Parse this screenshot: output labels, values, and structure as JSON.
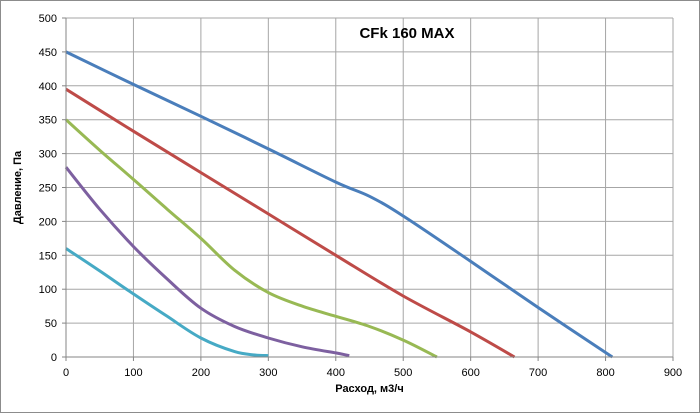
{
  "chart_data": {
    "type": "line",
    "title": "CFk 160 MAX",
    "xlabel": "Расход, м3/ч",
    "ylabel": "Давление, Па",
    "xlim": [
      0,
      900
    ],
    "ylim": [
      0,
      500
    ],
    "x_ticks": [
      0,
      100,
      200,
      300,
      400,
      500,
      600,
      700,
      800,
      900
    ],
    "y_ticks": [
      0,
      50,
      100,
      150,
      200,
      250,
      300,
      350,
      400,
      450,
      500
    ],
    "grid": true,
    "legend": "none",
    "series": [
      {
        "name": "blue",
        "color": "#4a7ebb",
        "points": [
          [
            0,
            450
          ],
          [
            100,
            402
          ],
          [
            200,
            355
          ],
          [
            300,
            307
          ],
          [
            400,
            258
          ],
          [
            450,
            237
          ],
          [
            500,
            208
          ],
          [
            600,
            141
          ],
          [
            700,
            73
          ],
          [
            810,
            0
          ]
        ]
      },
      {
        "name": "red",
        "color": "#be4b48",
        "points": [
          [
            0,
            395
          ],
          [
            100,
            333
          ],
          [
            200,
            272
          ],
          [
            300,
            211
          ],
          [
            400,
            150
          ],
          [
            500,
            90
          ],
          [
            600,
            37
          ],
          [
            665,
            0
          ]
        ]
      },
      {
        "name": "green",
        "color": "#98b954",
        "points": [
          [
            0,
            350
          ],
          [
            50,
            305
          ],
          [
            100,
            262
          ],
          [
            150,
            218
          ],
          [
            200,
            175
          ],
          [
            250,
            128
          ],
          [
            300,
            95
          ],
          [
            350,
            75
          ],
          [
            400,
            60
          ],
          [
            450,
            45
          ],
          [
            500,
            25
          ],
          [
            550,
            0
          ]
        ]
      },
      {
        "name": "purple",
        "color": "#7d60a0",
        "points": [
          [
            0,
            280
          ],
          [
            50,
            218
          ],
          [
            100,
            163
          ],
          [
            150,
            115
          ],
          [
            200,
            72
          ],
          [
            250,
            45
          ],
          [
            300,
            28
          ],
          [
            350,
            15
          ],
          [
            400,
            6
          ],
          [
            420,
            2
          ]
        ]
      },
      {
        "name": "cyan",
        "color": "#46aac5",
        "points": [
          [
            0,
            160
          ],
          [
            50,
            127
          ],
          [
            100,
            93
          ],
          [
            150,
            60
          ],
          [
            200,
            28
          ],
          [
            250,
            8
          ],
          [
            280,
            3
          ],
          [
            300,
            2
          ]
        ]
      }
    ]
  }
}
